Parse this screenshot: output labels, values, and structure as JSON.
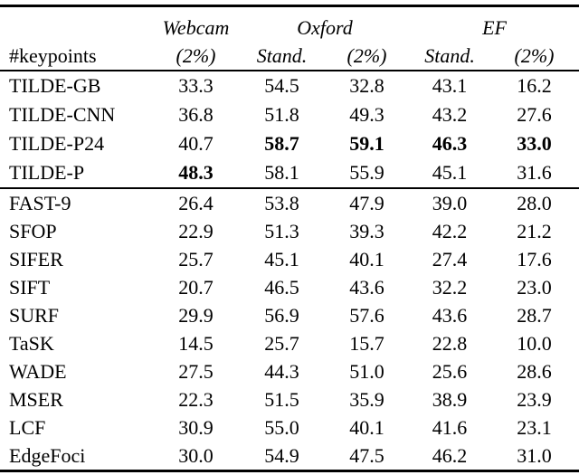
{
  "table": {
    "header": {
      "col1": "#keypoints",
      "groups": [
        {
          "label": "Webcam",
          "span": 1
        },
        {
          "label": "Oxford",
          "span": 2
        },
        {
          "label": "EF",
          "span": 2
        }
      ],
      "subs": [
        "(2%)",
        "Stand.",
        "(2%)",
        "Stand.",
        "(2%)"
      ]
    },
    "sections": [
      {
        "rows": [
          {
            "name": "TILDE-GB",
            "values": [
              "33.3",
              "54.5",
              "32.8",
              "43.1",
              "16.2"
            ],
            "bold": [
              false,
              false,
              false,
              false,
              false
            ]
          },
          {
            "name": "TILDE-CNN",
            "values": [
              "36.8",
              "51.8",
              "49.3",
              "43.2",
              "27.6"
            ],
            "bold": [
              false,
              false,
              false,
              false,
              false
            ]
          },
          {
            "name": "TILDE-P24",
            "values": [
              "40.7",
              "58.7",
              "59.1",
              "46.3",
              "33.0"
            ],
            "bold": [
              false,
              true,
              true,
              true,
              true
            ]
          },
          {
            "name": "TILDE-P",
            "values": [
              "48.3",
              "58.1",
              "55.9",
              "45.1",
              "31.6"
            ],
            "bold": [
              true,
              false,
              false,
              false,
              false
            ]
          }
        ]
      },
      {
        "rows": [
          {
            "name": "FAST-9",
            "values": [
              "26.4",
              "53.8",
              "47.9",
              "39.0",
              "28.0"
            ],
            "bold": [
              false,
              false,
              false,
              false,
              false
            ]
          },
          {
            "name": "SFOP",
            "values": [
              "22.9",
              "51.3",
              "39.3",
              "42.2",
              "21.2"
            ],
            "bold": [
              false,
              false,
              false,
              false,
              false
            ]
          },
          {
            "name": "SIFER",
            "values": [
              "25.7",
              "45.1",
              "40.1",
              "27.4",
              "17.6"
            ],
            "bold": [
              false,
              false,
              false,
              false,
              false
            ]
          },
          {
            "name": "SIFT",
            "values": [
              "20.7",
              "46.5",
              "43.6",
              "32.2",
              "23.0"
            ],
            "bold": [
              false,
              false,
              false,
              false,
              false
            ]
          },
          {
            "name": "SURF",
            "values": [
              "29.9",
              "56.9",
              "57.6",
              "43.6",
              "28.7"
            ],
            "bold": [
              false,
              false,
              false,
              false,
              false
            ]
          },
          {
            "name": "TaSK",
            "values": [
              "14.5",
              "25.7",
              "15.7",
              "22.8",
              "10.0"
            ],
            "bold": [
              false,
              false,
              false,
              false,
              false
            ]
          },
          {
            "name": "WADE",
            "values": [
              "27.5",
              "44.3",
              "51.0",
              "25.6",
              "28.6"
            ],
            "bold": [
              false,
              false,
              false,
              false,
              false
            ]
          },
          {
            "name": "MSER",
            "values": [
              "22.3",
              "51.5",
              "35.9",
              "38.9",
              "23.9"
            ],
            "bold": [
              false,
              false,
              false,
              false,
              false
            ]
          },
          {
            "name": "LCF",
            "values": [
              "30.9",
              "55.0",
              "40.1",
              "41.6",
              "23.1"
            ],
            "bold": [
              false,
              false,
              false,
              false,
              false
            ]
          },
          {
            "name": "EdgeFoci",
            "values": [
              "30.0",
              "54.9",
              "47.5",
              "46.2",
              "31.0"
            ],
            "bold": [
              false,
              false,
              false,
              false,
              false
            ]
          }
        ]
      }
    ]
  },
  "colors": {
    "text": "#000000",
    "background": "#ffffff",
    "rule": "#000000"
  }
}
